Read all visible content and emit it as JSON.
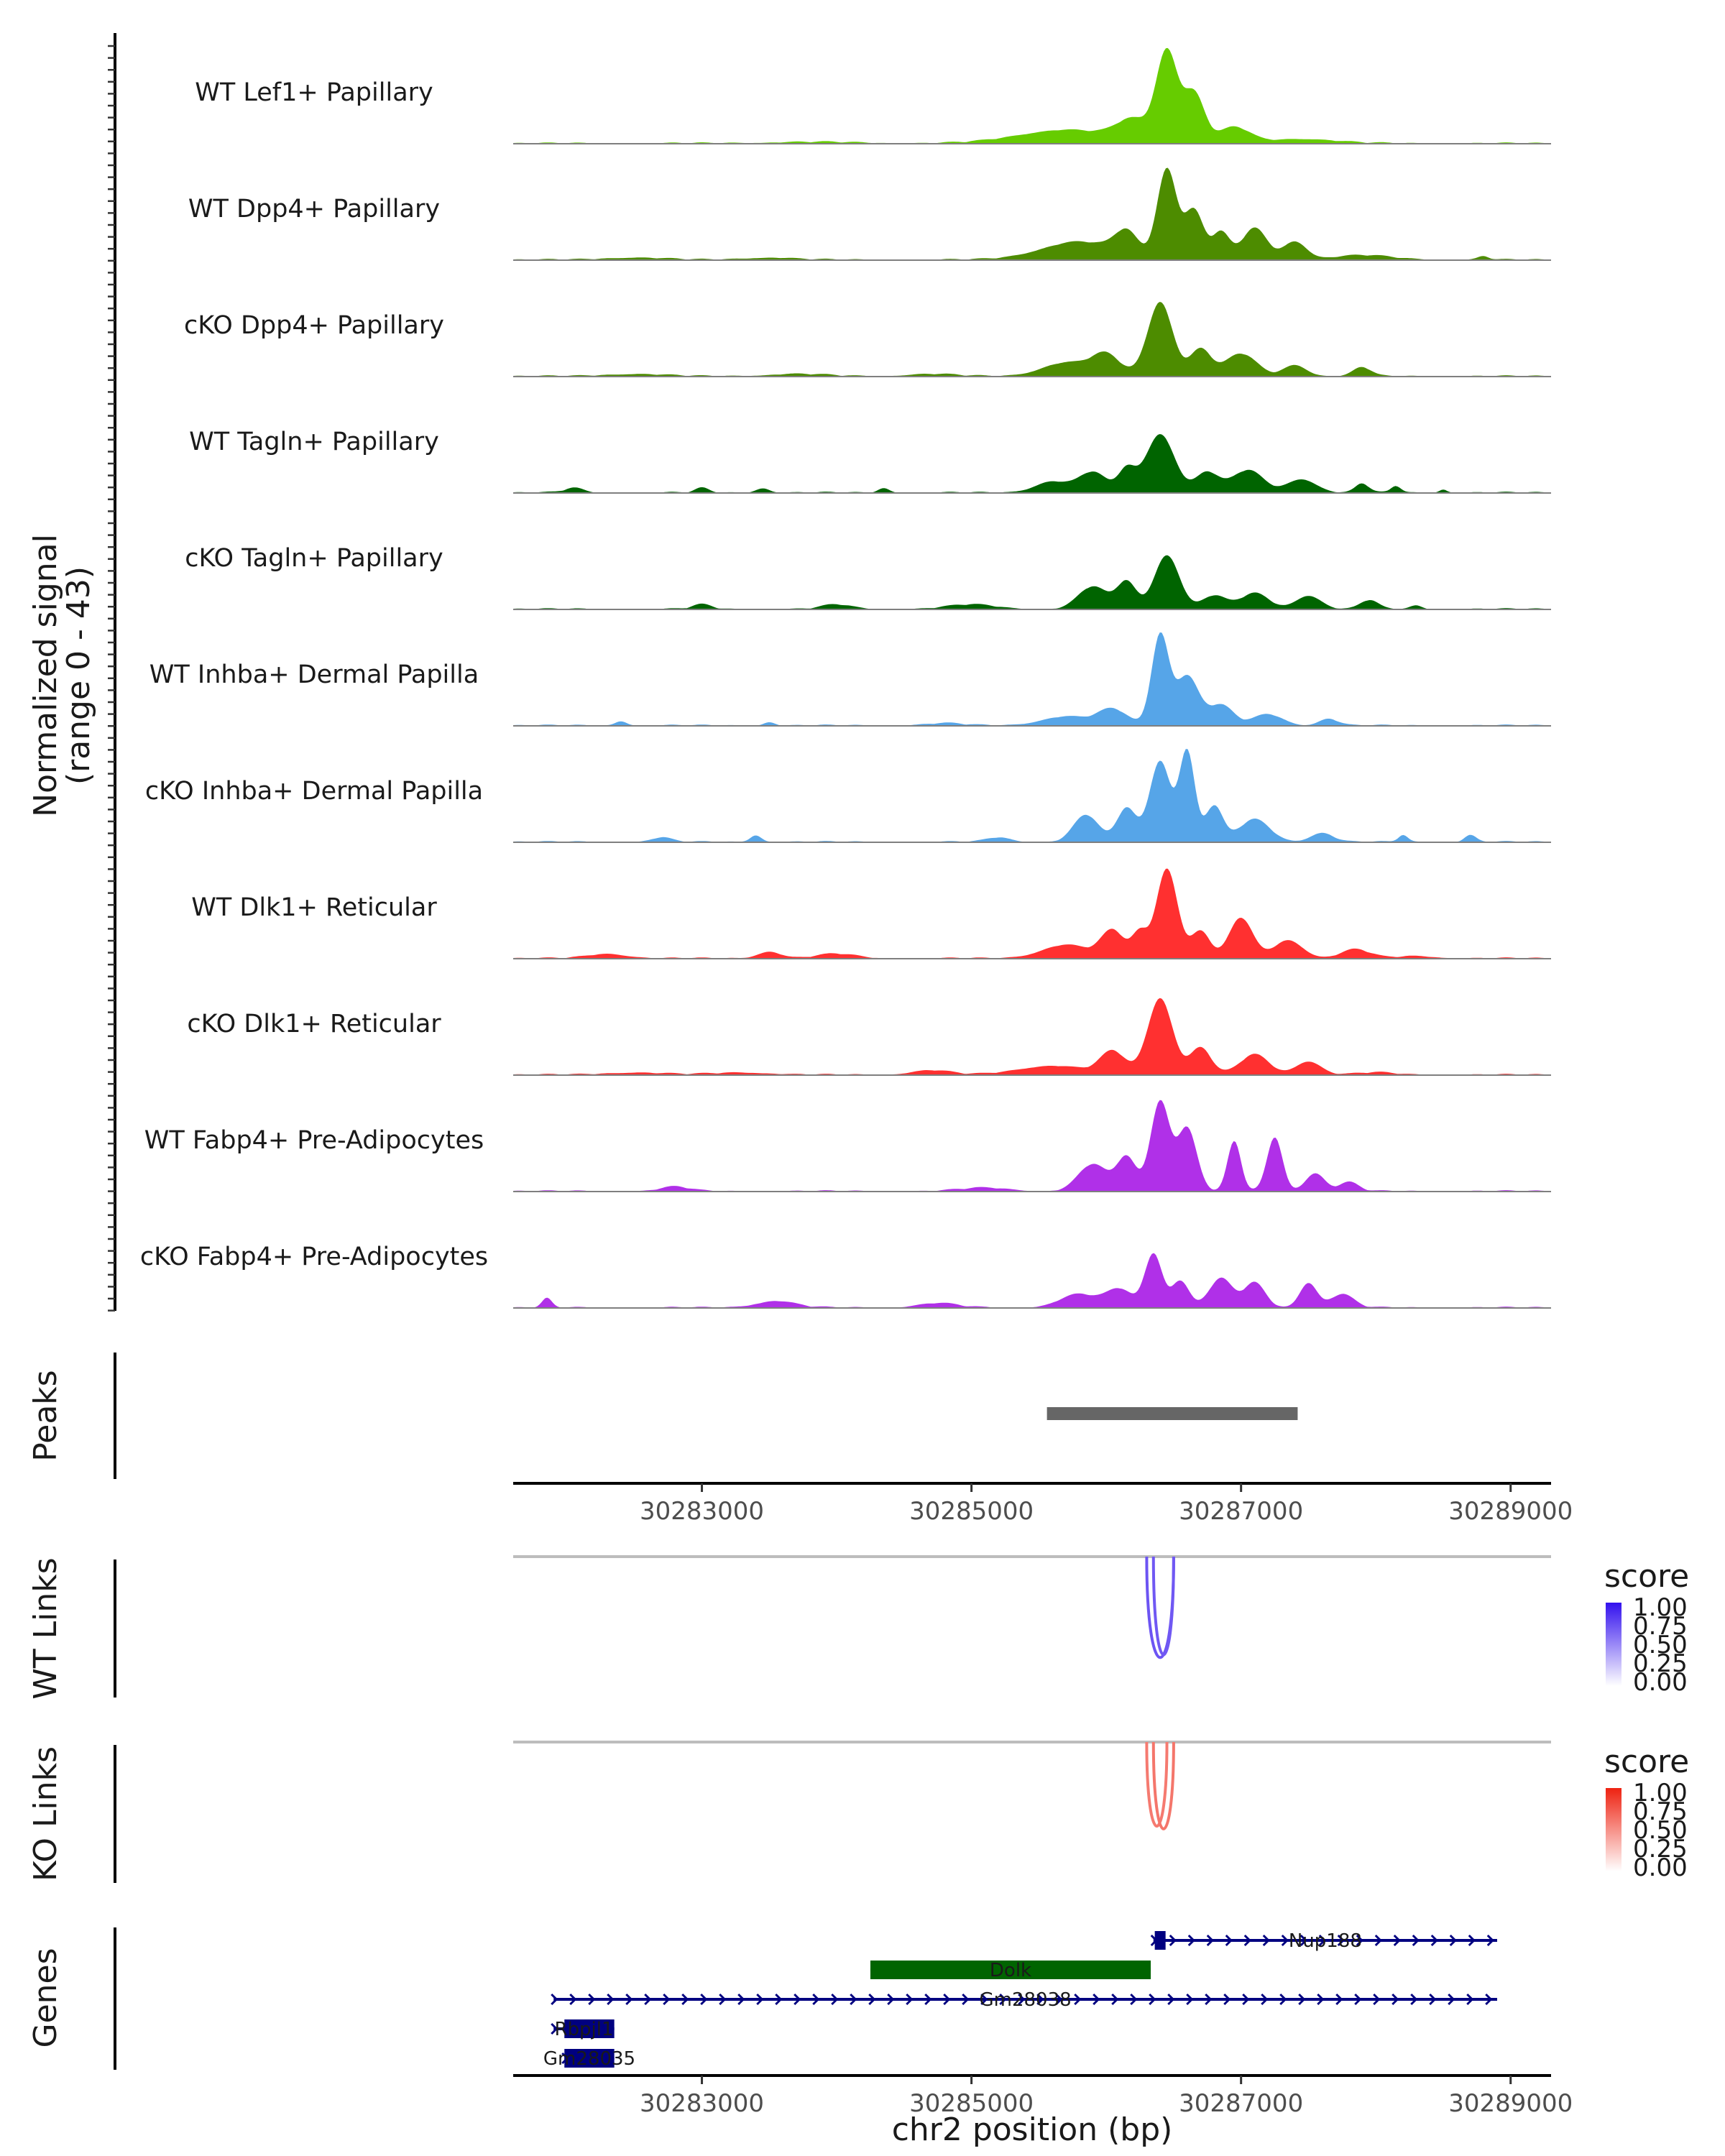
{
  "chart_data": {
    "type": "genome-browser-coverage",
    "region": {
      "chromosome": "chr2",
      "start": 30281600,
      "end": 30289300
    },
    "coverage": {
      "ylabel": "Normalized signal",
      "ylabel_range": "(range 0 - 43)",
      "ylim": [
        0,
        43
      ],
      "tracks": [
        {
          "name": "WT Lef1+ Papillary",
          "color": "#66CC00",
          "peaks": [
            [
              30285700,
              6,
              500
            ],
            [
              30286200,
              9,
              170
            ],
            [
              30286450,
              40,
              110
            ],
            [
              30286650,
              22,
              110
            ],
            [
              30286950,
              7,
              160
            ],
            [
              30287450,
              2,
              350
            ],
            [
              30283800,
              0.6,
              500
            ]
          ]
        },
        {
          "name": "WT Dpp4+ Papillary",
          "color": "#4D8C00",
          "peaks": [
            [
              30285800,
              8,
              400
            ],
            [
              30286150,
              10,
              120
            ],
            [
              30286450,
              40,
              100
            ],
            [
              30286650,
              22,
              100
            ],
            [
              30286850,
              12,
              90
            ],
            [
              30287100,
              14,
              130
            ],
            [
              30287400,
              8,
              120
            ],
            [
              30287900,
              2,
              300
            ],
            [
              30288800,
              1.5,
              60
            ],
            [
              30282500,
              1,
              300
            ],
            [
              30283500,
              1,
              250
            ]
          ]
        },
        {
          "name": "cKO Dpp4+ Papillary",
          "color": "#4D8C00",
          "peaks": [
            [
              30285700,
              6,
              250
            ],
            [
              30286000,
              9,
              150
            ],
            [
              30286400,
              33,
              130
            ],
            [
              30286700,
              12,
              110
            ],
            [
              30287000,
              10,
              160
            ],
            [
              30287400,
              5,
              120
            ],
            [
              30287900,
              4,
              90
            ],
            [
              30283700,
              1,
              300
            ],
            [
              30282500,
              1,
              300
            ],
            [
              30284700,
              1,
              250
            ]
          ]
        },
        {
          "name": "WT Tagln+ Papillary",
          "color": "#006400",
          "peaks": [
            [
              30285600,
              5,
              180
            ],
            [
              30285900,
              9,
              140
            ],
            [
              30286150,
              10,
              90
            ],
            [
              30286400,
              26,
              150
            ],
            [
              30286750,
              9,
              120
            ],
            [
              30287050,
              10,
              160
            ],
            [
              30287450,
              6,
              150
            ],
            [
              30287900,
              4,
              70
            ],
            [
              30288150,
              3,
              50
            ],
            [
              30282050,
              2,
              100
            ],
            [
              30283000,
              2,
              70
            ],
            [
              30283450,
              2,
              70
            ],
            [
              30284350,
              2,
              60
            ],
            [
              30288500,
              1.5,
              40
            ]
          ]
        },
        {
          "name": "cKO Tagln+ Papillary",
          "color": "#006400",
          "peaks": [
            [
              30285900,
              10,
              150
            ],
            [
              30286150,
              12,
              100
            ],
            [
              30286450,
              24,
              130
            ],
            [
              30286800,
              6,
              120
            ],
            [
              30287100,
              7,
              150
            ],
            [
              30287500,
              6,
              130
            ],
            [
              30287950,
              4,
              90
            ],
            [
              30283000,
              2,
              100
            ],
            [
              30284000,
              2,
              150
            ],
            [
              30285000,
              2,
              250
            ],
            [
              30288300,
              1.5,
              60
            ]
          ]
        },
        {
          "name": "WT Inhba+ Dermal Papilla",
          "color": "#56A5E8",
          "peaks": [
            [
              30285700,
              4,
              250
            ],
            [
              30286050,
              7,
              150
            ],
            [
              30286400,
              40,
              90
            ],
            [
              30286600,
              22,
              120
            ],
            [
              30286850,
              9,
              130
            ],
            [
              30287200,
              5,
              150
            ],
            [
              30287650,
              3,
              100
            ],
            [
              30282400,
              2,
              60
            ],
            [
              30283500,
              1.5,
              60
            ],
            [
              30284800,
              1,
              200
            ]
          ]
        },
        {
          "name": "cKO Inhba+ Dermal Papilla",
          "color": "#56A5E8",
          "peaks": [
            [
              30285850,
              12,
              130
            ],
            [
              30286150,
              15,
              100
            ],
            [
              30286400,
              36,
              110
            ],
            [
              30286600,
              40,
              80
            ],
            [
              30286800,
              16,
              90
            ],
            [
              30287100,
              10,
              160
            ],
            [
              30287600,
              4,
              120
            ],
            [
              30288200,
              3,
              50
            ],
            [
              30288700,
              3,
              60
            ],
            [
              30283400,
              3,
              60
            ],
            [
              30282700,
              2,
              100
            ],
            [
              30285200,
              2,
              120
            ]
          ]
        },
        {
          "name": "WT Dlk1+ Reticular",
          "color": "#FF3030",
          "peaks": [
            [
              30285700,
              6,
              250
            ],
            [
              30286050,
              12,
              120
            ],
            [
              30286250,
              11,
              80
            ],
            [
              30286450,
              40,
              110
            ],
            [
              30286700,
              12,
              100
            ],
            [
              30287000,
              18,
              120
            ],
            [
              30287350,
              8,
              150
            ],
            [
              30287850,
              4,
              150
            ],
            [
              30283500,
              3,
              120
            ],
            [
              30284000,
              2,
              200
            ],
            [
              30282300,
              2,
              200
            ],
            [
              30288300,
              1,
              200
            ]
          ]
        },
        {
          "name": "cKO Dlk1+ Reticular",
          "color": "#FF3030",
          "peaks": [
            [
              30285600,
              4,
              350
            ],
            [
              30286050,
              10,
              130
            ],
            [
              30286400,
              34,
              130
            ],
            [
              30286700,
              12,
              110
            ],
            [
              30287100,
              9,
              150
            ],
            [
              30287500,
              6,
              130
            ],
            [
              30282500,
              1,
              300
            ],
            [
              30283300,
              1,
              300
            ],
            [
              30284700,
              2,
              200
            ],
            [
              30288000,
              1,
              200
            ]
          ]
        },
        {
          "name": "WT Fabp4+ Pre-Adipocytes",
          "color": "#B030E8",
          "peaks": [
            [
              30285900,
              12,
              150
            ],
            [
              30286150,
              15,
              100
            ],
            [
              30286400,
              40,
              100
            ],
            [
              30286600,
              28,
              100
            ],
            [
              30286950,
              22,
              70
            ],
            [
              30287250,
              24,
              80
            ],
            [
              30287550,
              8,
              100
            ],
            [
              30287800,
              4,
              100
            ],
            [
              30282800,
              2,
              150
            ],
            [
              30285100,
              1.5,
              250
            ]
          ]
        },
        {
          "name": "cKO Fabp4+ Pre-Adipocytes",
          "color": "#B030E8",
          "peaks": [
            [
              30285800,
              6,
              200
            ],
            [
              30286100,
              8,
              130
            ],
            [
              30286350,
              24,
              90
            ],
            [
              30286550,
              12,
              90
            ],
            [
              30286850,
              13,
              120
            ],
            [
              30287100,
              11,
              110
            ],
            [
              30287500,
              11,
              90
            ],
            [
              30287750,
              6,
              120
            ],
            [
              30281850,
              4,
              50
            ],
            [
              30283550,
              3,
              200
            ],
            [
              30284750,
              2,
              200
            ]
          ]
        }
      ]
    },
    "peaks_track": {
      "label": "Peaks",
      "color": "#666666",
      "intervals": [
        [
          30285560,
          30287420
        ]
      ]
    },
    "x_axis": {
      "ticks": [
        30283000,
        30285000,
        30287000,
        30289000
      ],
      "tick_labels": [
        "30283000",
        "30285000",
        "30287000",
        "30289000"
      ],
      "label": "chr2 position (bp)"
    },
    "links": [
      {
        "label": "WT Links",
        "legend_title": "score",
        "legend_ticks": [
          "1.00",
          "0.75",
          "0.50",
          "0.25",
          "0.00"
        ],
        "color_low": "#FFFFFF",
        "color_high": "#3311EE",
        "arcs": [
          {
            "start": 30286300,
            "end": 30286500,
            "score": 0.72
          },
          {
            "start": 30286350,
            "end": 30286500,
            "score": 0.7
          }
        ]
      },
      {
        "label": "KO Links",
        "legend_title": "score",
        "legend_ticks": [
          "1.00",
          "0.75",
          "0.50",
          "0.25",
          "0.00"
        ],
        "color_low": "#FFFFFF",
        "color_high": "#EE2211",
        "arcs": [
          {
            "start": 30286300,
            "end": 30286450,
            "score": 0.6
          },
          {
            "start": 30286350,
            "end": 30286500,
            "score": 0.62
          }
        ]
      }
    ],
    "genes": {
      "label": "Genes",
      "items": [
        {
          "name": "Nup188",
          "start": 30286350,
          "end": 30288900,
          "row": 0,
          "strand": "+",
          "color": "#000080",
          "exons": [
            [
              30286360,
              30286440
            ]
          ]
        },
        {
          "name": "Dolk",
          "start": 30284250,
          "end": 30286330,
          "row": 1,
          "strand": "-",
          "color": "#006400",
          "exons": [
            [
              30284250,
              30286330
            ]
          ]
        },
        {
          "name": "Gm28038",
          "start": 30281900,
          "end": 30288900,
          "row": 2,
          "strand": "+",
          "color": "#000080",
          "exons": []
        },
        {
          "name": "Rbpjl1",
          "start": 30281900,
          "end": 30282350,
          "row": 3,
          "strand": "+",
          "color": "#000080",
          "exons": [
            [
              30281980,
              30282350
            ]
          ]
        },
        {
          "name": "Gm28035",
          "start": 30281980,
          "end": 30282350,
          "row": 4,
          "strand": "+",
          "color": "#000080",
          "exons": [
            [
              30281980,
              30282350
            ]
          ]
        }
      ]
    }
  }
}
